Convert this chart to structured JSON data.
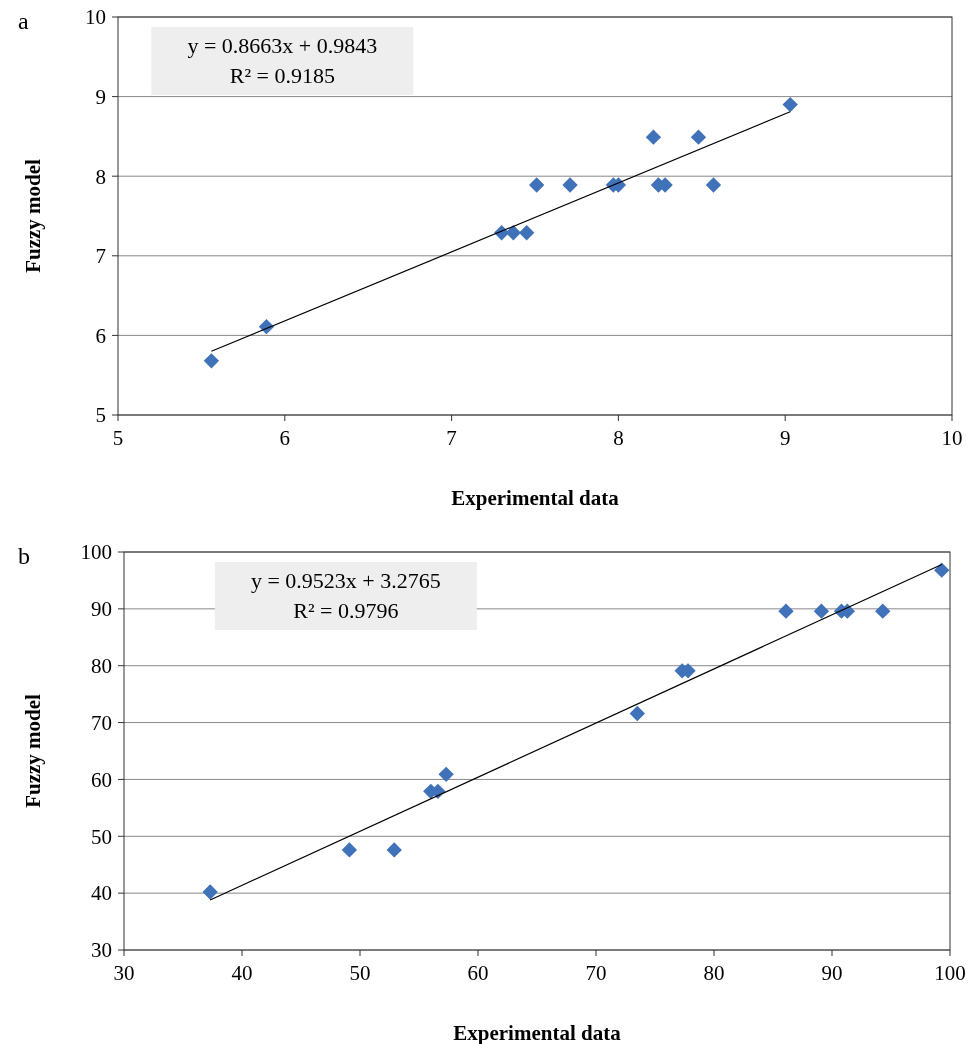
{
  "chart_data": [
    {
      "type": "scatter",
      "title": "a",
      "xlabel": "Experimental data",
      "ylabel": "Fuzzy model",
      "annotations": [
        "y = 0.8663x + 0.9843",
        "R² = 0.9185"
      ],
      "xlim": [
        5,
        10
      ],
      "xticks": [
        5,
        6,
        7,
        8,
        9,
        10
      ],
      "ylim": [
        5,
        10
      ],
      "yticks": [
        5,
        6,
        7,
        8,
        9,
        10
      ],
      "grid": "y",
      "series": [
        {
          "marker": "diamond",
          "color": "#3f72b8",
          "x": [
            5.56,
            5.89,
            7.3,
            7.37,
            7.45,
            7.51,
            7.71,
            7.97,
            8.0,
            8.21,
            8.24,
            8.28,
            8.48,
            8.57,
            9.03
          ],
          "values": [
            5.68,
            6.11,
            7.29,
            7.29,
            7.29,
            7.89,
            7.89,
            7.89,
            7.89,
            8.49,
            7.89,
            7.89,
            8.49,
            7.89,
            8.9
          ]
        },
        {
          "type": "line",
          "marker": "none",
          "color": "#000000",
          "line_style": "solid",
          "x": [
            5.56,
            9.03
          ],
          "values": [
            5.8,
            8.81
          ]
        }
      ]
    },
    {
      "type": "scatter",
      "title": "b",
      "xlabel": "Experimental data",
      "ylabel": "Fuzzy model",
      "annotations": [
        "y = 0.9523x + 3.2765",
        "R² = 0.9796"
      ],
      "xlim": [
        30,
        100
      ],
      "xticks": [
        30,
        40,
        50,
        60,
        70,
        80,
        90,
        100
      ],
      "ylim": [
        30,
        100
      ],
      "yticks": [
        30,
        40,
        50,
        60,
        70,
        80,
        90,
        100
      ],
      "grid": "y",
      "series": [
        {
          "marker": "diamond",
          "color": "#3f72b8",
          "x": [
            37.3,
            49.1,
            52.9,
            56.0,
            56.6,
            57.3,
            73.5,
            77.3,
            77.8,
            86.1,
            89.1,
            90.8,
            91.3,
            94.3,
            99.3
          ],
          "values": [
            40.2,
            47.6,
            47.6,
            57.9,
            57.9,
            60.9,
            71.6,
            79.1,
            79.1,
            89.6,
            89.6,
            89.6,
            89.6,
            89.6,
            96.8
          ]
        },
        {
          "type": "line",
          "marker": "none",
          "color": "#000000",
          "line_style": "solid",
          "x": [
            37.3,
            99.3
          ],
          "values": [
            38.8,
            97.8
          ]
        }
      ]
    }
  ]
}
